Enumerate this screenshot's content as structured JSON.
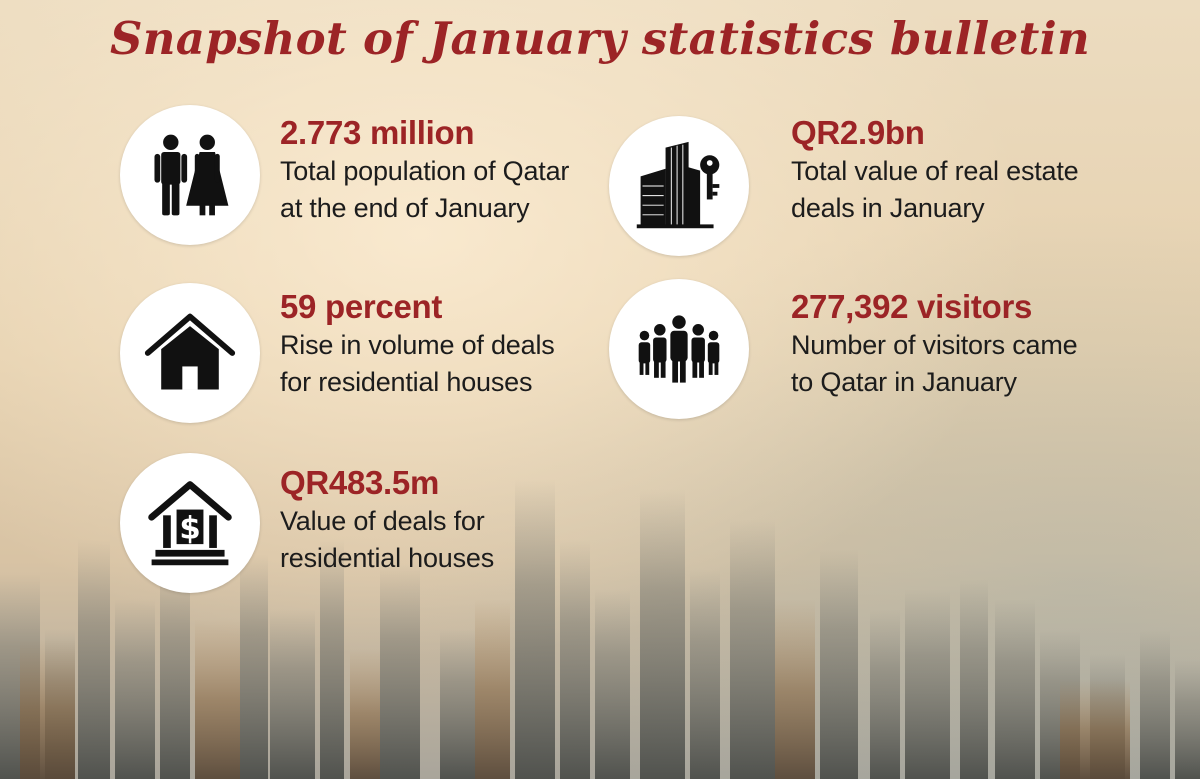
{
  "title": "Snapshot of January statistics bulletin",
  "colors": {
    "accent": "#9c2426",
    "text": "#1c1c1c",
    "circle": "#ffffff"
  },
  "stats": [
    {
      "value": "2.773 million",
      "description": "Total population of Qatar\nat the end of January",
      "icon": "couple-icon"
    },
    {
      "value": "QR2.9bn",
      "description": "Total value of real estate\ndeals in January",
      "icon": "building-key-icon"
    },
    {
      "value": "59 percent",
      "description": "Rise in volume of deals\nfor residential houses",
      "icon": "house-icon"
    },
    {
      "value": "277,392 visitors",
      "description": "Number of visitors came\nto Qatar in January",
      "icon": "crowd-icon"
    },
    {
      "value": "QR483.5m",
      "description": "Value of deals for\nresidential houses",
      "icon": "house-dollar-icon"
    }
  ]
}
